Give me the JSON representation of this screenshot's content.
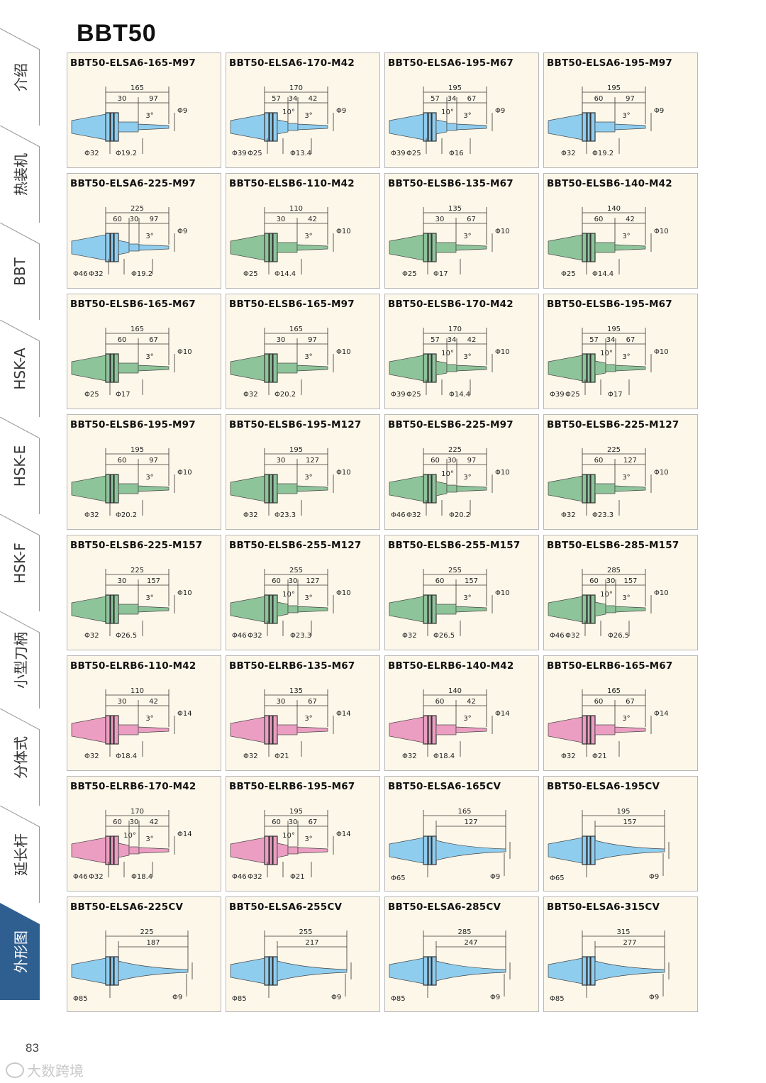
{
  "page_title": "BBT50",
  "page_number": "83",
  "watermark": "大数跨境",
  "colors": {
    "blue": "#8fcdef",
    "green": "#8ec49a",
    "pink": "#ec9ec2",
    "sidebar_active": "#2f5f90"
  },
  "sidebar": {
    "active_index": 9,
    "items": [
      {
        "label": "介绍"
      },
      {
        "label": "热装机"
      },
      {
        "label": "BBT"
      },
      {
        "label": "HSK-A"
      },
      {
        "label": "HSK-E"
      },
      {
        "label": "HSK-F"
      },
      {
        "label": "小型刀柄"
      },
      {
        "label": "分体式"
      },
      {
        "label": "延长杆"
      },
      {
        "label": "外形图"
      }
    ]
  },
  "cards": [
    {
      "model": "BBT50-ELSA6-165-M97",
      "color": "blue",
      "kind": "std",
      "total": "165",
      "segs": [
        "30",
        "97"
      ],
      "mid": [],
      "taper": "3°",
      "tip": "Φ9",
      "bottom": [
        "Φ32",
        "Φ19.2"
      ]
    },
    {
      "model": "BBT50-ELSA6-170-M42",
      "color": "blue",
      "kind": "std",
      "total": "170",
      "segs": [
        "57",
        "34",
        "42"
      ],
      "mid": [
        "10°"
      ],
      "taper": "3°",
      "tip": "Φ9",
      "bottom": [
        "Φ39",
        "Φ25",
        "Φ13.4"
      ]
    },
    {
      "model": "BBT50-ELSA6-195-M67",
      "color": "blue",
      "kind": "std",
      "total": "195",
      "segs": [
        "57",
        "34",
        "67"
      ],
      "mid": [
        "10°"
      ],
      "taper": "3°",
      "tip": "Φ9",
      "bottom": [
        "Φ39",
        "Φ25",
        "Φ16"
      ]
    },
    {
      "model": "BBT50-ELSA6-195-M97",
      "color": "blue",
      "kind": "std",
      "total": "195",
      "segs": [
        "60",
        "97"
      ],
      "mid": [],
      "taper": "3°",
      "tip": "Φ9",
      "bottom": [
        "Φ32",
        "Φ19.2"
      ]
    },
    {
      "model": "BBT50-ELSA6-225-M97",
      "color": "blue",
      "kind": "std",
      "total": "225",
      "segs": [
        "60",
        "30",
        "97"
      ],
      "mid": [],
      "taper": "3°",
      "tip": "Φ9",
      "bottom": [
        "Φ46",
        "Φ32",
        "Φ19.2"
      ]
    },
    {
      "model": "BBT50-ELSB6-110-M42",
      "color": "green",
      "kind": "std",
      "total": "110",
      "segs": [
        "30",
        "42"
      ],
      "mid": [],
      "taper": "3°",
      "tip": "Φ10",
      "bottom": [
        "Φ25",
        "Φ14.4"
      ]
    },
    {
      "model": "BBT50-ELSB6-135-M67",
      "color": "green",
      "kind": "std",
      "total": "135",
      "segs": [
        "30",
        "67"
      ],
      "mid": [],
      "taper": "3°",
      "tip": "Φ10",
      "bottom": [
        "Φ25",
        "Φ17"
      ]
    },
    {
      "model": "BBT50-ELSB6-140-M42",
      "color": "green",
      "kind": "std",
      "total": "140",
      "segs": [
        "60",
        "42"
      ],
      "mid": [],
      "taper": "3°",
      "tip": "Φ10",
      "bottom": [
        "Φ25",
        "Φ14.4"
      ]
    },
    {
      "model": "BBT50-ELSB6-165-M67",
      "color": "green",
      "kind": "std",
      "total": "165",
      "segs": [
        "60",
        "67"
      ],
      "mid": [],
      "taper": "3°",
      "tip": "Φ10",
      "bottom": [
        "Φ25",
        "Φ17"
      ]
    },
    {
      "model": "BBT50-ELSB6-165-M97",
      "color": "green",
      "kind": "std",
      "total": "165",
      "segs": [
        "30",
        "97"
      ],
      "mid": [],
      "taper": "3°",
      "tip": "Φ10",
      "bottom": [
        "Φ32",
        "Φ20.2"
      ]
    },
    {
      "model": "BBT50-ELSB6-170-M42",
      "color": "green",
      "kind": "std",
      "total": "170",
      "segs": [
        "57",
        "34",
        "42"
      ],
      "mid": [
        "10°"
      ],
      "taper": "3°",
      "tip": "Φ10",
      "bottom": [
        "Φ39",
        "Φ25",
        "Φ14.4"
      ]
    },
    {
      "model": "BBT50-ELSB6-195-M67",
      "color": "green",
      "kind": "std",
      "total": "195",
      "segs": [
        "57",
        "34",
        "67"
      ],
      "mid": [
        "10°"
      ],
      "taper": "3°",
      "tip": "Φ10",
      "bottom": [
        "Φ39",
        "Φ25",
        "Φ17"
      ]
    },
    {
      "model": "BBT50-ELSB6-195-M97",
      "color": "green",
      "kind": "std",
      "total": "195",
      "segs": [
        "60",
        "97"
      ],
      "mid": [],
      "taper": "3°",
      "tip": "Φ10",
      "bottom": [
        "Φ32",
        "Φ20.2"
      ]
    },
    {
      "model": "BBT50-ELSB6-195-M127",
      "color": "green",
      "kind": "std",
      "total": "195",
      "segs": [
        "30",
        "127"
      ],
      "mid": [],
      "taper": "3°",
      "tip": "Φ10",
      "bottom": [
        "Φ32",
        "Φ23.3"
      ]
    },
    {
      "model": "BBT50-ELSB6-225-M97",
      "color": "green",
      "kind": "std",
      "total": "225",
      "segs": [
        "60",
        "30",
        "97"
      ],
      "mid": [
        "10°"
      ],
      "taper": "3°",
      "tip": "Φ10",
      "bottom": [
        "Φ46",
        "Φ32",
        "Φ20.2"
      ]
    },
    {
      "model": "BBT50-ELSB6-225-M127",
      "color": "green",
      "kind": "std",
      "total": "225",
      "segs": [
        "60",
        "127"
      ],
      "mid": [],
      "taper": "3°",
      "tip": "Φ10",
      "bottom": [
        "Φ32",
        "Φ23.3"
      ]
    },
    {
      "model": "BBT50-ELSB6-225-M157",
      "color": "green",
      "kind": "std",
      "total": "225",
      "segs": [
        "30",
        "157"
      ],
      "mid": [],
      "taper": "3°",
      "tip": "Φ10",
      "bottom": [
        "Φ32",
        "Φ26.5"
      ]
    },
    {
      "model": "BBT50-ELSB6-255-M127",
      "color": "green",
      "kind": "std",
      "total": "255",
      "segs": [
        "60",
        "30",
        "127"
      ],
      "mid": [
        "10°"
      ],
      "taper": "3°",
      "tip": "Φ10",
      "bottom": [
        "Φ46",
        "Φ32",
        "Φ23.3"
      ]
    },
    {
      "model": "BBT50-ELSB6-255-M157",
      "color": "green",
      "kind": "std",
      "total": "255",
      "segs": [
        "60",
        "157"
      ],
      "mid": [],
      "taper": "3°",
      "tip": "Φ10",
      "bottom": [
        "Φ32",
        "Φ26.5"
      ]
    },
    {
      "model": "BBT50-ELSB6-285-M157",
      "color": "green",
      "kind": "std",
      "total": "285",
      "segs": [
        "60",
        "30",
        "157"
      ],
      "mid": [
        "10°"
      ],
      "taper": "3°",
      "tip": "Φ10",
      "bottom": [
        "Φ46",
        "Φ32",
        "Φ26.5"
      ]
    },
    {
      "model": "BBT50-ELRB6-110-M42",
      "color": "pink",
      "kind": "std",
      "total": "110",
      "segs": [
        "30",
        "42"
      ],
      "mid": [],
      "taper": "3°",
      "tip": "Φ14",
      "bottom": [
        "Φ32",
        "Φ18.4"
      ]
    },
    {
      "model": "BBT50-ELRB6-135-M67",
      "color": "pink",
      "kind": "std",
      "total": "135",
      "segs": [
        "30",
        "67"
      ],
      "mid": [],
      "taper": "3°",
      "tip": "Φ14",
      "bottom": [
        "Φ32",
        "Φ21"
      ]
    },
    {
      "model": "BBT50-ELRB6-140-M42",
      "color": "pink",
      "kind": "std",
      "total": "140",
      "segs": [
        "60",
        "42"
      ],
      "mid": [],
      "taper": "3°",
      "tip": "Φ14",
      "bottom": [
        "Φ32",
        "Φ18.4"
      ]
    },
    {
      "model": "BBT50-ELRB6-165-M67",
      "color": "pink",
      "kind": "std",
      "total": "165",
      "segs": [
        "60",
        "67"
      ],
      "mid": [],
      "taper": "3°",
      "tip": "Φ14",
      "bottom": [
        "Φ32",
        "Φ21"
      ]
    },
    {
      "model": "BBT50-ELRB6-170-M42",
      "color": "pink",
      "kind": "std",
      "total": "170",
      "segs": [
        "60",
        "30",
        "42"
      ],
      "mid": [
        "10°"
      ],
      "taper": "3°",
      "tip": "Φ14",
      "bottom": [
        "Φ46",
        "Φ32",
        "Φ18.4"
      ]
    },
    {
      "model": "BBT50-ELRB6-195-M67",
      "color": "pink",
      "kind": "std",
      "total": "195",
      "segs": [
        "60",
        "30",
        "67"
      ],
      "mid": [
        "10°"
      ],
      "taper": "3°",
      "tip": "Φ14",
      "bottom": [
        "Φ46",
        "Φ32",
        "Φ21"
      ]
    },
    {
      "model": "BBT50-ELSA6-165CV",
      "color": "blue",
      "kind": "cv",
      "total": "165",
      "segs": [
        "127"
      ],
      "mid": [],
      "taper": "",
      "tip": "Φ9",
      "bottom": [
        "Φ65"
      ]
    },
    {
      "model": "BBT50-ELSA6-195CV",
      "color": "blue",
      "kind": "cv",
      "total": "195",
      "segs": [
        "157"
      ],
      "mid": [],
      "taper": "",
      "tip": "Φ9",
      "bottom": [
        "Φ65"
      ]
    },
    {
      "model": "BBT50-ELSA6-225CV",
      "color": "blue",
      "kind": "cv",
      "total": "225",
      "segs": [
        "187"
      ],
      "mid": [],
      "taper": "",
      "tip": "Φ9",
      "bottom": [
        "Φ85"
      ]
    },
    {
      "model": "BBT50-ELSA6-255CV",
      "color": "blue",
      "kind": "cv",
      "total": "255",
      "segs": [
        "217"
      ],
      "mid": [],
      "taper": "",
      "tip": "Φ9",
      "bottom": [
        "Φ85"
      ]
    },
    {
      "model": "BBT50-ELSA6-285CV",
      "color": "blue",
      "kind": "cv",
      "total": "285",
      "segs": [
        "247"
      ],
      "mid": [],
      "taper": "",
      "tip": "Φ9",
      "bottom": [
        "Φ85"
      ]
    },
    {
      "model": "BBT50-ELSA6-315CV",
      "color": "blue",
      "kind": "cv",
      "total": "315",
      "segs": [
        "277"
      ],
      "mid": [],
      "taper": "",
      "tip": "Φ9",
      "bottom": [
        "Φ85"
      ]
    }
  ]
}
